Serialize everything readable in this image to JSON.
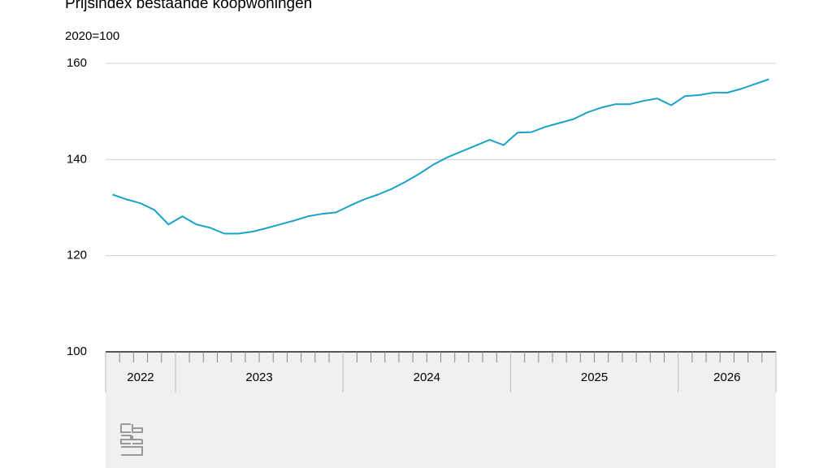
{
  "chart_data": {
    "type": "line",
    "title": "Prijsindex bestaande koopwoningen",
    "subtitle": "2020=100",
    "categories": [
      "2022",
      "2022",
      "2022",
      "2022",
      "2022",
      "2023",
      "2023",
      "2023",
      "2023",
      "2023",
      "2023",
      "2023",
      "2023",
      "2023",
      "2023",
      "2023",
      "2023",
      "2024",
      "2024",
      "2024",
      "2024",
      "2024",
      "2024",
      "2024",
      "2024",
      "2024",
      "2024",
      "2024",
      "2024",
      "2025",
      "2025",
      "2025",
      "2025",
      "2025",
      "2025",
      "2025",
      "2025",
      "2025",
      "2025",
      "2025",
      "2025",
      "2026",
      "2026",
      "2026",
      "2026",
      "2026",
      "2026",
      "2026"
    ],
    "series": [
      {
        "name": "Prijsindex",
        "color": "#1aa3c9",
        "values": [
          132.7,
          131.7,
          130.9,
          129.5,
          126.5,
          128.2,
          126.5,
          125.8,
          124.6,
          124.6,
          125.0,
          125.7,
          126.5,
          127.3,
          128.2,
          128.7,
          129.0,
          130.4,
          131.7,
          132.7,
          133.9,
          135.4,
          137.1,
          139.0,
          140.5,
          141.7,
          142.9,
          144.1,
          143.0,
          145.6,
          145.7,
          146.8,
          147.6,
          148.4,
          149.8,
          150.8,
          151.5,
          151.5,
          152.2,
          152.7,
          151.3,
          153.2,
          153.4,
          153.9,
          153.9,
          154.7,
          155.7,
          156.7
        ]
      }
    ],
    "ylim": [
      100,
      160
    ],
    "yticks": [
      100,
      120,
      140,
      160
    ],
    "grid": true
  }
}
